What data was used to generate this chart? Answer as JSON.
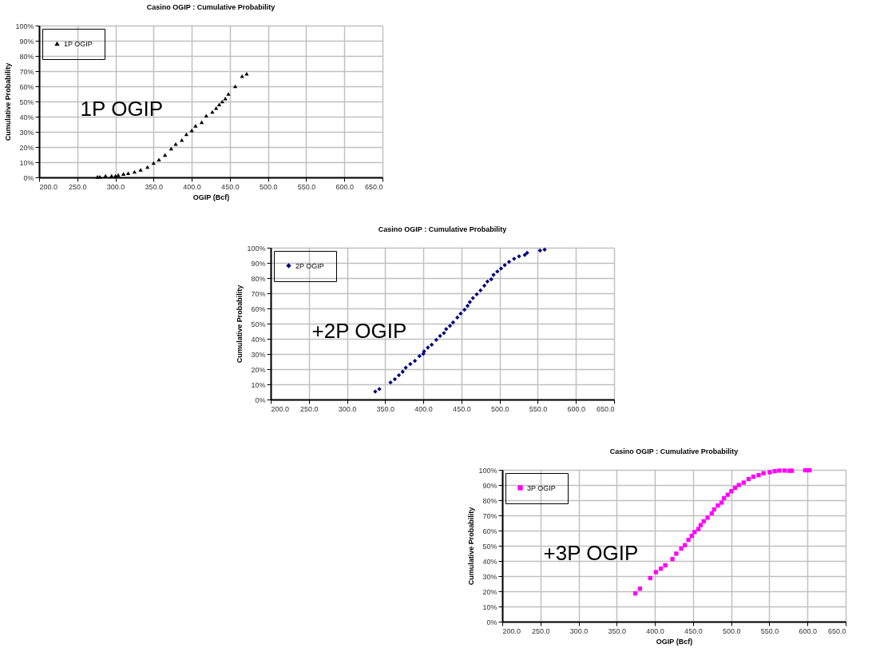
{
  "chart_data": [
    {
      "type": "scatter",
      "title": "Casino OGIP : Cumulative Probability",
      "xlabel": "OGIP (Bcf)",
      "ylabel": "Cumulative Probability",
      "annotations": [
        "1P OGIP"
      ],
      "marker": "triangle",
      "grid": true,
      "legend": "top left",
      "x": [
        276.5,
        279.6,
        287,
        295,
        300,
        303.7,
        310.5,
        316.7,
        325,
        333,
        342,
        350,
        357,
        365,
        373,
        379,
        387,
        393,
        400,
        405,
        413,
        419,
        427,
        432,
        436,
        440,
        444,
        448,
        457,
        466,
        472
      ],
      "series": [
        {
          "name": "1P OGIP",
          "color": "#000000",
          "values": [
            0.4,
            0.4,
            1,
            1,
            1,
            1.5,
            2.3,
            2.8,
            3.7,
            5,
            6.8,
            9.5,
            11.7,
            14.8,
            19,
            22,
            24.6,
            28.4,
            31,
            34,
            36.4,
            40.7,
            43.2,
            45.7,
            48,
            50,
            52,
            55,
            60,
            66.7,
            68.3
          ]
        }
      ],
      "xlim": [
        200,
        650
      ],
      "xticks": [
        {
          "value": 200,
          "label": "200.0"
        },
        {
          "value": 250,
          "label": "250.0"
        },
        {
          "value": 300,
          "label": "300.0"
        },
        {
          "value": 350,
          "label": "350.0"
        },
        {
          "value": 400,
          "label": "400.0"
        },
        {
          "value": 450,
          "label": "450.0"
        },
        {
          "value": 500,
          "label": "500.0"
        },
        {
          "value": 550,
          "label": "550.0"
        },
        {
          "value": 600,
          "label": "600.0"
        },
        {
          "value": 650,
          "label": "650.0"
        }
      ],
      "ylim": [
        0,
        100
      ],
      "yticks": [
        {
          "value": 0,
          "label": "0%"
        },
        {
          "value": 10,
          "label": "10%"
        },
        {
          "value": 20,
          "label": "20%"
        },
        {
          "value": 30,
          "label": "30%"
        },
        {
          "value": 40,
          "label": "40%"
        },
        {
          "value": 50,
          "label": "50%"
        },
        {
          "value": 60,
          "label": "60%"
        },
        {
          "value": 70,
          "label": "70%"
        },
        {
          "value": 80,
          "label": "80%"
        },
        {
          "value": 90,
          "label": "90%"
        },
        {
          "value": 100,
          "label": "100%"
        }
      ]
    },
    {
      "type": "scatter",
      "title": "Casino OGIP : Cumulative Probability",
      "ylabel": "Cumulative Probability",
      "annotations": [
        "+2P OGIP"
      ],
      "marker": "diamond",
      "grid": true,
      "legend": "top left",
      "x": [
        337,
        342.4,
        357,
        362.7,
        368,
        373,
        377,
        383,
        389,
        395,
        400,
        401,
        406,
        411,
        417,
        422,
        427,
        430,
        435,
        439,
        444.6,
        449,
        454,
        458,
        461,
        465,
        470,
        475,
        480,
        484,
        489,
        492,
        497,
        501.9,
        506.7,
        512.4,
        519,
        525.5,
        533,
        536,
        553,
        559
      ],
      "series": [
        {
          "name": "2P OGIP",
          "color": "#000080",
          "values": [
            5.2,
            6.9,
            11.2,
            13.4,
            16,
            18.3,
            21,
            23.4,
            25.5,
            28.6,
            30.1,
            31.7,
            34.2,
            36.1,
            39.3,
            41.9,
            43.8,
            46.4,
            48.5,
            50.8,
            54,
            56.6,
            59.1,
            61.7,
            64.2,
            66.8,
            69.3,
            71.9,
            75,
            77.7,
            79.2,
            82.1,
            84.3,
            86.3,
            88.5,
            90.7,
            92.7,
            94.3,
            95.2,
            96.6,
            98.1,
            98.7
          ]
        }
      ],
      "xlim": [
        200,
        650
      ],
      "xticks": [
        {
          "value": 200,
          "label": "200.0"
        },
        {
          "value": 250,
          "label": "250.0"
        },
        {
          "value": 300,
          "label": "300.0"
        },
        {
          "value": 350,
          "label": "350.0"
        },
        {
          "value": 400,
          "label": "400.0"
        },
        {
          "value": 450,
          "label": "450.0"
        },
        {
          "value": 500,
          "label": "500.0"
        },
        {
          "value": 550,
          "label": "550.0"
        },
        {
          "value": 600,
          "label": "600.0"
        },
        {
          "value": 650,
          "label": "650.0"
        }
      ],
      "ylim": [
        0,
        100
      ],
      "yticks": [
        {
          "value": 0,
          "label": "0%"
        },
        {
          "value": 10,
          "label": "10%"
        },
        {
          "value": 20,
          "label": "20%"
        },
        {
          "value": 30,
          "label": "30%"
        },
        {
          "value": 40,
          "label": "40%"
        },
        {
          "value": 50,
          "label": "50%"
        },
        {
          "value": 60,
          "label": "60%"
        },
        {
          "value": 70,
          "label": "70%"
        },
        {
          "value": 80,
          "label": "80%"
        },
        {
          "value": 90,
          "label": "90%"
        },
        {
          "value": 100,
          "label": "100%"
        }
      ]
    },
    {
      "type": "scatter",
      "title": "Casino OGIP : Cumulative Probability",
      "xlabel": "OGIP (Bcf)",
      "ylabel": "Cumulative Probability",
      "annotations": [
        "+3P OGIP"
      ],
      "marker": "square",
      "grid": true,
      "legend": "top left",
      "x": [
        374.3,
        380.4,
        394,
        401.4,
        407.8,
        413.6,
        423,
        428,
        434.5,
        439.3,
        444,
        448.3,
        452,
        457,
        460,
        464,
        469,
        474.5,
        477.7,
        482.5,
        487.4,
        490.6,
        495.4,
        500.2,
        505,
        510,
        516.4,
        522.8,
        529,
        535.9,
        542.3,
        550.5,
        557,
        563,
        569.8,
        576,
        579.5,
        597,
        602.7
      ],
      "series": [
        {
          "name": "3P OGIP",
          "color": "#ff00ff",
          "values": [
            18.6,
            21.7,
            28.7,
            32.6,
            34.9,
            37.1,
            41.2,
            44.8,
            48.1,
            50.4,
            53.9,
            56.5,
            59,
            61,
            63.6,
            66.1,
            68.5,
            71.3,
            73.9,
            76.5,
            78.4,
            81.3,
            83.6,
            85.9,
            88.1,
            90,
            91.6,
            93.9,
            95.5,
            96.5,
            97.8,
            98.4,
            99.1,
            99.5,
            99.5,
            99.4,
            99.4,
            99.7,
            99.7
          ]
        }
      ],
      "xlim": [
        200,
        650
      ],
      "xticks": [
        {
          "value": 200,
          "label": "200.0"
        },
        {
          "value": 250,
          "label": "250.0"
        },
        {
          "value": 300,
          "label": "300.0"
        },
        {
          "value": 350,
          "label": "350.0"
        },
        {
          "value": 400,
          "label": "400.0"
        },
        {
          "value": 450,
          "label": "450.0"
        },
        {
          "value": 500,
          "label": "500.0"
        },
        {
          "value": 550,
          "label": "550.0"
        },
        {
          "value": 600,
          "label": "600.0"
        },
        {
          "value": 650,
          "label": "650.0"
        }
      ],
      "ylim": [
        0,
        100
      ],
      "yticks": [
        {
          "value": 0,
          "label": "0%"
        },
        {
          "value": 10,
          "label": "10%"
        },
        {
          "value": 20,
          "label": "20%"
        },
        {
          "value": 30,
          "label": "30%"
        },
        {
          "value": 40,
          "label": "40%"
        },
        {
          "value": 50,
          "label": "50%"
        },
        {
          "value": 60,
          "label": "60%"
        },
        {
          "value": 70,
          "label": "70%"
        },
        {
          "value": 80,
          "label": "80%"
        },
        {
          "value": 90,
          "label": "90%"
        },
        {
          "value": 100,
          "label": "100%"
        }
      ]
    }
  ]
}
